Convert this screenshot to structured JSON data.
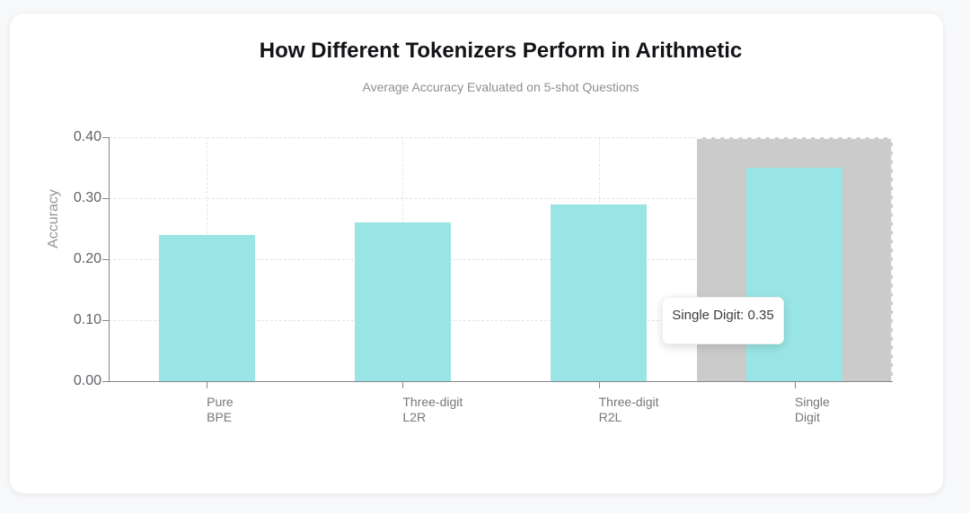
{
  "page": {
    "background": "#f7f8f9"
  },
  "card": {
    "background": "#ffffff",
    "border_color": "#eceef0"
  },
  "chart_data": {
    "type": "bar",
    "title": "How Different Tokenizers Perform in Arithmetic",
    "subtitle": "Average Accuracy Evaluated on 5-shot Questions",
    "xlabel": "",
    "ylabel": "Accuracy",
    "categories": [
      [
        "Pure",
        "BPE"
      ],
      [
        "Three-digit",
        "L2R"
      ],
      [
        "Three-digit",
        "R2L"
      ],
      [
        "Single",
        "Digit"
      ]
    ],
    "values": [
      0.24,
      0.26,
      0.29,
      0.35
    ],
    "ylim": [
      0,
      0.4
    ],
    "yticks": [
      0,
      0.1,
      0.2,
      0.3,
      0.4
    ],
    "ytick_labels": [
      "0.00",
      "0.10",
      "0.20",
      "0.30",
      "0.40"
    ],
    "grid": true,
    "legend": false,
    "bar_color": "#99e5e6",
    "axis_color": "#848689",
    "grid_color": "#e1e3e5",
    "highlight": {
      "category_index": 3,
      "band_color": "#cbcbcb"
    },
    "tooltip": {
      "text": "Single Digit: 0.35"
    }
  }
}
